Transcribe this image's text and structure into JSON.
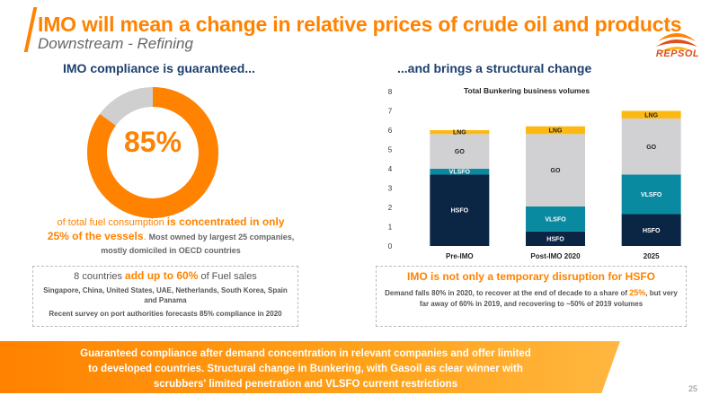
{
  "header": {
    "title": "IMO will mean a change in relative prices of crude oil and products",
    "subtitle": "Downstream - Refining",
    "logo_text": "REPSOL"
  },
  "left": {
    "heading": "IMO compliance is guaranteed...",
    "donut_value": 85,
    "donut_label": "85%",
    "desc_part1": "of total fuel consumption ",
    "desc_hl1": "is concentrated",
    "desc_part2": " in only",
    "desc_hl2": "25% of the vessels",
    "desc_part3": ". ",
    "desc_small": "Most owned by largest 25 companies, mostly domiciled in OECD countries",
    "box_part1": "8 countries ",
    "box_hl": "add up to 60%",
    "box_part2": " of Fuel sales",
    "box_countries": "Singapore, China, United States, UAE, Netherlands, South Korea, Spain and Panama",
    "box_survey": "Recent survey on port authorities forecasts 85% compliance in 2020"
  },
  "right": {
    "heading": "...and brings a structural change",
    "box_title": "IMO  is not only a temporary disruption for HSFO",
    "box_part1": "Demand falls 80% in 2020, to recover at the end of decade to a share of ",
    "box_hl": "25%",
    "box_part2": ", but very far away of 60% in 2019, and recovering to ~50% of 2019 volumes"
  },
  "banner": {
    "line1": "Guaranteed compliance after demand concentration in relevant companies and offer limited",
    "line2": "to developed countries. Structural change in Bunkering, with Gasoil as clear winner with",
    "line3": "scrubbers' limited penetration and VLSFO current restrictions"
  },
  "page_number": "25",
  "colors": {
    "accent": "#ff8200",
    "navy": "#0b2545",
    "teal": "#0a8aa0",
    "grey": "#d1d1d3",
    "yellow": "#fdb913"
  },
  "chart_data": {
    "type": "bar",
    "stacked": true,
    "title": "Total Bunkering business volumes",
    "categories": [
      "Pre-IMO",
      "Post-IMO 2020",
      "2025"
    ],
    "ylim": [
      0,
      8
    ],
    "yticks": [
      0,
      1,
      2,
      3,
      4,
      5,
      6,
      7,
      8
    ],
    "grid": false,
    "series": [
      {
        "name": "HSFO",
        "color": "#0b2545",
        "values": [
          3.7,
          0.75,
          1.65
        ]
      },
      {
        "name": "VLSFO",
        "color": "#0a8aa0",
        "values": [
          0.3,
          1.3,
          2.05
        ]
      },
      {
        "name": "GO",
        "color": "#d1d1d3",
        "values": [
          1.8,
          3.75,
          2.9
        ]
      },
      {
        "name": "LNG",
        "color": "#fdb913",
        "values": [
          0.2,
          0.4,
          0.4
        ]
      }
    ]
  }
}
